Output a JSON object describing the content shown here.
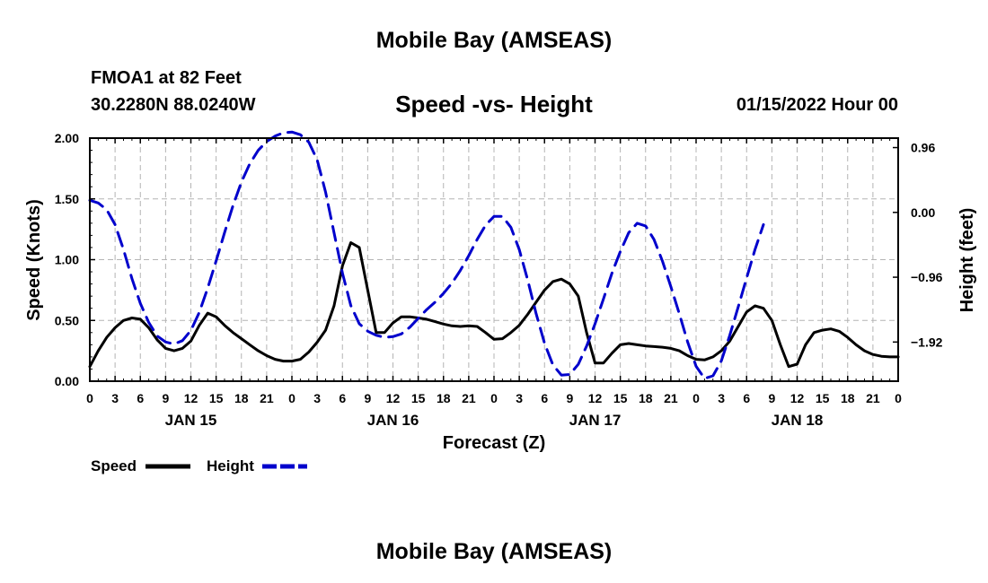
{
  "header": {
    "title": "Mobile Bay (AMSEAS)",
    "station": "FMOA1 at 82 Feet",
    "coords": "30.2280N  88.0240W",
    "subtitle": "Speed -vs- Height",
    "datetime": "01/15/2022 Hour 00"
  },
  "footer": {
    "title": "Mobile Bay (AMSEAS)"
  },
  "chart_data": {
    "type": "line",
    "title": "Speed -vs- Height",
    "xlabel": "Forecast (Z)",
    "ylabel": "Speed (Knots)",
    "y2label": "Height (feet)",
    "xlim": [
      0,
      96
    ],
    "ylim": [
      0,
      2
    ],
    "y2lim": [
      -2.5,
      1.1
    ],
    "grid": true,
    "x_ticks": [
      0,
      3,
      6,
      9,
      12,
      15,
      18,
      21,
      24,
      27,
      30,
      33,
      36,
      39,
      42,
      45,
      48,
      51,
      54,
      57,
      60,
      63,
      66,
      69,
      72,
      75,
      78,
      81,
      84,
      87,
      90,
      93,
      96
    ],
    "x_tick_labels": [
      "0",
      "3",
      "6",
      "9",
      "12",
      "15",
      "18",
      "21",
      "0",
      "3",
      "6",
      "9",
      "12",
      "15",
      "18",
      "21",
      "0",
      "3",
      "6",
      "9",
      "12",
      "15",
      "18",
      "21",
      "0",
      "3",
      "6",
      "9",
      "12",
      "15",
      "18",
      "21",
      "0"
    ],
    "day_labels": [
      {
        "x": 12,
        "label": "JAN 15"
      },
      {
        "x": 36,
        "label": "JAN 16"
      },
      {
        "x": 60,
        "label": "JAN 17"
      },
      {
        "x": 84,
        "label": "JAN 18"
      }
    ],
    "y_ticks": [
      0,
      0.5,
      1,
      1.5,
      2
    ],
    "y_tick_labels": [
      "0.00",
      "0.50",
      "1.00",
      "1.50",
      "2.00"
    ],
    "y2_ticks": [
      0.96,
      0,
      -0.96,
      -1.92
    ],
    "y2_tick_labels": [
      "0.96",
      "0.00",
      "−0.96",
      "−1.92"
    ],
    "legend": [
      {
        "name": "Speed",
        "color": "#000000",
        "dash": "solid"
      },
      {
        "name": "Height",
        "color": "#0000cc",
        "dash": "dashed"
      }
    ],
    "series": [
      {
        "name": "Speed",
        "axis": "left",
        "color": "#000000",
        "points": [
          [
            0,
            0.12
          ],
          [
            1,
            0.25
          ],
          [
            2,
            0.36
          ],
          [
            3,
            0.44
          ],
          [
            4,
            0.5
          ],
          [
            5,
            0.52
          ],
          [
            6,
            0.51
          ],
          [
            7,
            0.44
          ],
          [
            8,
            0.34
          ],
          [
            9,
            0.27
          ],
          [
            10,
            0.25
          ],
          [
            11,
            0.27
          ],
          [
            12,
            0.33
          ],
          [
            13,
            0.46
          ],
          [
            14,
            0.56
          ],
          [
            15,
            0.53
          ],
          [
            16,
            0.46
          ],
          [
            17,
            0.4
          ],
          [
            18,
            0.35
          ],
          [
            19,
            0.3
          ],
          [
            20,
            0.25
          ],
          [
            21,
            0.21
          ],
          [
            22,
            0.18
          ],
          [
            23,
            0.165
          ],
          [
            24,
            0.165
          ],
          [
            25,
            0.18
          ],
          [
            26,
            0.24
          ],
          [
            27,
            0.32
          ],
          [
            28,
            0.42
          ],
          [
            29,
            0.62
          ],
          [
            30,
            0.95
          ],
          [
            31,
            1.14
          ],
          [
            32,
            1.1
          ],
          [
            33,
            0.75
          ],
          [
            34,
            0.4
          ],
          [
            35,
            0.4
          ],
          [
            36,
            0.48
          ],
          [
            37,
            0.53
          ],
          [
            38,
            0.53
          ],
          [
            39,
            0.52
          ],
          [
            40,
            0.51
          ],
          [
            41,
            0.49
          ],
          [
            42,
            0.47
          ],
          [
            43,
            0.455
          ],
          [
            44,
            0.45
          ],
          [
            45,
            0.455
          ],
          [
            46,
            0.45
          ],
          [
            47,
            0.4
          ],
          [
            48,
            0.345
          ],
          [
            49,
            0.35
          ],
          [
            50,
            0.4
          ],
          [
            51,
            0.46
          ],
          [
            52,
            0.55
          ],
          [
            53,
            0.65
          ],
          [
            54,
            0.75
          ],
          [
            55,
            0.82
          ],
          [
            56,
            0.84
          ],
          [
            57,
            0.8
          ],
          [
            58,
            0.7
          ],
          [
            59,
            0.4
          ],
          [
            60,
            0.15
          ],
          [
            61,
            0.15
          ],
          [
            62,
            0.23
          ],
          [
            63,
            0.3
          ],
          [
            64,
            0.31
          ],
          [
            65,
            0.3
          ],
          [
            66,
            0.29
          ],
          [
            67,
            0.285
          ],
          [
            68,
            0.28
          ],
          [
            69,
            0.27
          ],
          [
            70,
            0.25
          ],
          [
            71,
            0.21
          ],
          [
            72,
            0.18
          ],
          [
            73,
            0.175
          ],
          [
            74,
            0.2
          ],
          [
            75,
            0.25
          ],
          [
            76,
            0.33
          ],
          [
            77,
            0.45
          ],
          [
            78,
            0.57
          ],
          [
            79,
            0.62
          ],
          [
            80,
            0.6
          ],
          [
            81,
            0.5
          ],
          [
            82,
            0.3
          ],
          [
            83,
            0.12
          ],
          [
            84,
            0.14
          ],
          [
            85,
            0.3
          ],
          [
            86,
            0.4
          ],
          [
            87,
            0.42
          ],
          [
            88,
            0.43
          ],
          [
            89,
            0.41
          ],
          [
            90,
            0.36
          ],
          [
            91,
            0.3
          ],
          [
            92,
            0.25
          ],
          [
            93,
            0.22
          ],
          [
            94,
            0.205
          ],
          [
            95,
            0.2
          ],
          [
            96,
            0.2
          ]
        ]
      },
      {
        "name": "Height",
        "axis": "right",
        "color": "#0000cc",
        "points": [
          [
            0,
            0.18
          ],
          [
            1,
            0.14
          ],
          [
            2,
            0.04
          ],
          [
            3,
            -0.18
          ],
          [
            4,
            -0.55
          ],
          [
            5,
            -0.98
          ],
          [
            6,
            -1.35
          ],
          [
            7,
            -1.63
          ],
          [
            8,
            -1.83
          ],
          [
            9,
            -1.92
          ],
          [
            10,
            -1.95
          ],
          [
            11,
            -1.9
          ],
          [
            12,
            -1.75
          ],
          [
            13,
            -1.48
          ],
          [
            14,
            -1.12
          ],
          [
            15,
            -0.72
          ],
          [
            16,
            -0.3
          ],
          [
            17,
            0.1
          ],
          [
            18,
            0.45
          ],
          [
            19,
            0.72
          ],
          [
            20,
            0.92
          ],
          [
            21,
            1.05
          ],
          [
            22,
            1.13
          ],
          [
            23,
            1.18
          ],
          [
            24,
            1.19
          ],
          [
            25,
            1.15
          ],
          [
            26,
            1.04
          ],
          [
            27,
            0.78
          ],
          [
            28,
            0.3
          ],
          [
            29,
            -0.3
          ],
          [
            30,
            -0.9
          ],
          [
            31,
            -1.38
          ],
          [
            32,
            -1.65
          ],
          [
            33,
            -1.76
          ],
          [
            34,
            -1.82
          ],
          [
            35,
            -1.85
          ],
          [
            36,
            -1.84
          ],
          [
            37,
            -1.8
          ],
          [
            38,
            -1.7
          ],
          [
            39,
            -1.57
          ],
          [
            40,
            -1.44
          ],
          [
            41,
            -1.33
          ],
          [
            42,
            -1.2
          ],
          [
            43,
            -1.05
          ],
          [
            44,
            -0.86
          ],
          [
            45,
            -0.64
          ],
          [
            46,
            -0.4
          ],
          [
            47,
            -0.19
          ],
          [
            48,
            -0.06
          ],
          [
            49,
            -0.06
          ],
          [
            50,
            -0.22
          ],
          [
            51,
            -0.55
          ],
          [
            52,
            -1.0
          ],
          [
            53,
            -1.5
          ],
          [
            54,
            -1.94
          ],
          [
            55,
            -2.26
          ],
          [
            56,
            -2.41
          ],
          [
            57,
            -2.4
          ],
          [
            58,
            -2.25
          ],
          [
            59,
            -1.98
          ],
          [
            60,
            -1.65
          ],
          [
            61,
            -1.28
          ],
          [
            62,
            -0.9
          ],
          [
            63,
            -0.58
          ],
          [
            64,
            -0.3
          ],
          [
            65,
            -0.16
          ],
          [
            66,
            -0.2
          ],
          [
            67,
            -0.4
          ],
          [
            68,
            -0.72
          ],
          [
            69,
            -1.1
          ],
          [
            70,
            -1.5
          ],
          [
            71,
            -1.92
          ],
          [
            72,
            -2.28
          ],
          [
            73,
            -2.46
          ],
          [
            74,
            -2.42
          ],
          [
            75,
            -2.2
          ],
          [
            76,
            -1.82
          ],
          [
            77,
            -1.4
          ],
          [
            78,
            -0.97
          ],
          [
            79,
            -0.55
          ],
          [
            80,
            -0.18
          ]
        ]
      }
    ]
  }
}
